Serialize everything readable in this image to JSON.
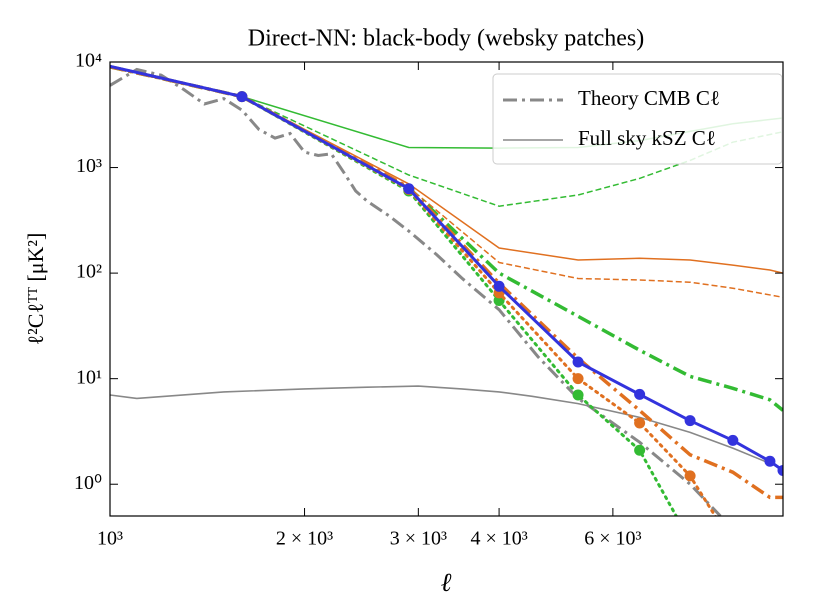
{
  "chart_data": {
    "type": "line",
    "title": "Direct-NN: black-body (websky patches)",
    "x_label": "ℓ",
    "y_label": "ℓ²Cℓᵀᵀ [μK²]",
    "xscale": "log",
    "yscale": "log",
    "xlim": [
      1000,
      11000
    ],
    "ylim": [
      0.5,
      10000
    ],
    "xticks": [
      {
        "value": 1000,
        "label": "10³"
      },
      {
        "value": 2000,
        "label": "2 × 10³"
      },
      {
        "value": 3000,
        "label": "3 × 10³"
      },
      {
        "value": 4000,
        "label": "4 × 10³"
      },
      {
        "value": 6000,
        "label": "6 × 10³"
      }
    ],
    "yticks": [
      {
        "value": 1,
        "label": "10⁰"
      },
      {
        "value": 10,
        "label": "10¹"
      },
      {
        "value": 100,
        "label": "10²"
      },
      {
        "value": 1000,
        "label": "10³"
      },
      {
        "value": 10000,
        "label": "10⁴"
      }
    ],
    "legend": "upper right",
    "series": [
      {
        "name": "Theory CMB Cℓ",
        "color": "#888888",
        "style": "dashdot",
        "width": 3,
        "x": [
          1000,
          1100,
          1200,
          1300,
          1400,
          1500,
          1600,
          1700,
          1800,
          1900,
          2000,
          2100,
          2200,
          2300,
          2400,
          2500,
          2700,
          2900,
          3200,
          3500,
          4000,
          4600,
          5300,
          6600,
          7900,
          8800
        ],
        "values": [
          6000,
          8500,
          7500,
          5500,
          4000,
          4500,
          3500,
          2300,
          1900,
          2100,
          1400,
          1300,
          1350,
          900,
          600,
          480,
          350,
          250,
          150,
          90,
          45,
          16,
          6.5,
          2.5,
          1.0,
          0.5
        ]
      },
      {
        "name": "Full sky kSZ Cℓ",
        "color": "#888888",
        "style": "solid",
        "width": 1.6,
        "x": [
          1000,
          1100,
          1500,
          2000,
          2500,
          3000,
          3500,
          4000,
          4500,
          5300,
          6600,
          7900,
          9200,
          11000
        ],
        "values": [
          7,
          6.5,
          7.5,
          8,
          8.3,
          8.5,
          8,
          7.5,
          6.8,
          5.8,
          4.3,
          3.1,
          2.2,
          1.4
        ]
      },
      {
        "color": "#33bb33",
        "style": "solid",
        "width": 1.5,
        "x": [
          1000,
          1600,
          2900,
          4000,
          5300,
          6600,
          7900,
          9200,
          11000
        ],
        "values": [
          9000,
          4700,
          1550,
          1530,
          1550,
          1800,
          2200,
          2600,
          2950
        ]
      },
      {
        "color": "#33bb33",
        "style": "dashed",
        "width": 1.5,
        "x": [
          1000,
          1600,
          2900,
          4000,
          5300,
          6600,
          7900,
          9200,
          11000
        ],
        "values": [
          9000,
          4700,
          850,
          430,
          550,
          790,
          1170,
          1740,
          2180
        ]
      },
      {
        "color": "#e07020",
        "style": "solid",
        "width": 1.5,
        "x": [
          1000,
          1600,
          2900,
          4000,
          5300,
          6600,
          7900,
          9200,
          10500,
          11000
        ],
        "values": [
          9000,
          4700,
          700,
          173,
          133,
          138,
          133,
          119,
          107,
          100
        ]
      },
      {
        "color": "#e07020",
        "style": "dashed",
        "width": 1.5,
        "x": [
          1000,
          1600,
          2900,
          4000,
          5300,
          6600,
          7900,
          9200,
          11000
        ],
        "values": [
          9000,
          4700,
          650,
          126,
          89,
          86,
          82,
          72,
          59
        ]
      },
      {
        "color": "#33bb33",
        "style": "dashdot",
        "width": 3.5,
        "x": [
          1000,
          1600,
          2900,
          4000,
          5300,
          6600,
          7900,
          9200,
          10500,
          11000
        ],
        "values": [
          9000,
          4700,
          640,
          100,
          39,
          18.6,
          10.5,
          8.1,
          6.3,
          5
        ]
      },
      {
        "color": "#e07020",
        "style": "dashdot",
        "width": 3.5,
        "x": [
          1000,
          1600,
          2900,
          4000,
          5300,
          6600,
          7900,
          9200,
          10500,
          11000
        ],
        "values": [
          9000,
          4700,
          650,
          80,
          15.6,
          5,
          1.9,
          1.3,
          0.75,
          0.75
        ]
      },
      {
        "color": "#33bb33",
        "style": "dotted",
        "width": 3,
        "marker": true,
        "x": [
          1000,
          1600,
          2900,
          4000,
          5300,
          6600,
          7900
        ],
        "values": [
          9000,
          4700,
          600,
          55,
          7,
          2.1,
          0.29
        ]
      },
      {
        "color": "#e07020",
        "style": "dotted",
        "width": 3,
        "marker": true,
        "x": [
          1000,
          1600,
          2900,
          4000,
          5300,
          6600,
          7900,
          9200
        ],
        "values": [
          9000,
          4700,
          620,
          65,
          10,
          3.8,
          1.2,
          0.27
        ]
      },
      {
        "color": "#3333dd",
        "style": "solid",
        "width": 3,
        "marker": true,
        "x": [
          1000,
          1600,
          2900,
          4000,
          5300,
          6600,
          7900,
          9200,
          10500,
          11000
        ],
        "values": [
          9100,
          4700,
          630,
          75,
          14.4,
          7.1,
          4.0,
          2.6,
          1.65,
          1.35
        ]
      }
    ]
  }
}
